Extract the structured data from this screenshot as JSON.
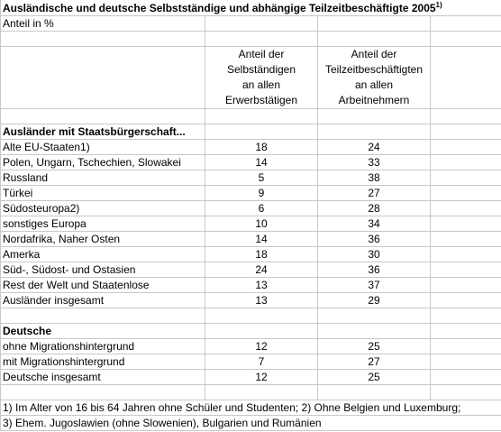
{
  "title": "Ausländische und deutsche Selbstständige und abhängige  Teilzeitbeschäftigte 2005",
  "title_note": "1)",
  "unit": "Anteil in %",
  "column_headers": [
    [
      "Anteil der",
      "Selbständigen",
      "an allen",
      "Erwerbstätigen"
    ],
    [
      "Anteil der",
      "Teilzeitbeschäftigten",
      "an allen",
      "Arbeitnehmern"
    ]
  ],
  "sections": [
    {
      "heading": "Ausländer mit Staatsbürgerschaft...",
      "rows": [
        [
          "Alte EU-Staaten1)",
          18,
          24
        ],
        [
          "Polen, Ungarn, Tschechien, Slowakei",
          14,
          33
        ],
        [
          "Russland",
          5,
          38
        ],
        [
          "Türkei",
          9,
          27
        ],
        [
          "Südosteuropa2)",
          6,
          28
        ],
        [
          "sonstiges Europa",
          10,
          34
        ],
        [
          "Nordafrika, Naher Osten",
          14,
          36
        ],
        [
          "Amerka",
          18,
          30
        ],
        [
          "Süd-, Südost- und Ostasien",
          24,
          36
        ],
        [
          "Rest der Welt und Staatenlose",
          13,
          37
        ],
        [
          "Ausländer insgesamt",
          13,
          29
        ]
      ]
    },
    {
      "heading": "Deutsche",
      "rows": [
        [
          "ohne Migrationshintergrund",
          12,
          25
        ],
        [
          "mit Migrationshintergrund",
          7,
          27
        ],
        [
          "Deutsche insgesamt",
          12,
          25
        ]
      ]
    }
  ],
  "footnotes": [
    "1) Im Alter von 16 bis 64 Jahren ohne Schüler und Studenten; 2) Ohne Belgien und Luxemburg;",
    "3) Ehem. Jugoslawien (ohne Slowenien), Bulgarien und Rumänien"
  ]
}
